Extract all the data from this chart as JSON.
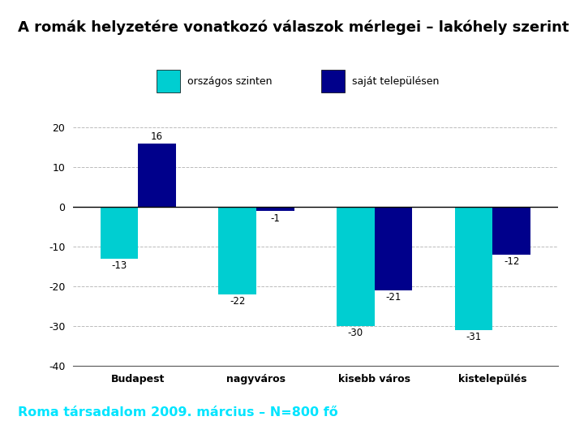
{
  "title": "A romák helyzetére vonatkozó válaszok mérlegei – lakóhely szerint",
  "categories": [
    "Budapest",
    "nagyváros",
    "kisebb város",
    "kistelepülés"
  ],
  "series": [
    {
      "name": "országos szinten",
      "color": "#00CED1",
      "values": [
        -13,
        -22,
        -30,
        -31
      ]
    },
    {
      "name": "saját településen",
      "color": "#00008B",
      "values": [
        16,
        -1,
        -21,
        -12
      ]
    }
  ],
  "ylim": [
    -40,
    25
  ],
  "yticks": [
    -40,
    -30,
    -20,
    -10,
    0,
    10,
    20
  ],
  "footer_text": "Roma társadalom 2009. március – N=800 fő",
  "footer_bg": "#1C3F6E",
  "footer_text_color": "#00E5FF",
  "chart_bg": "#ffffff",
  "outer_bg": "#ffffff",
  "border_color": "#222222",
  "grid_color": "#bbbbbb",
  "title_fontsize": 13,
  "label_fontsize": 9,
  "tick_fontsize": 9,
  "bar_value_fontsize": 8.5,
  "bar_width": 0.32
}
